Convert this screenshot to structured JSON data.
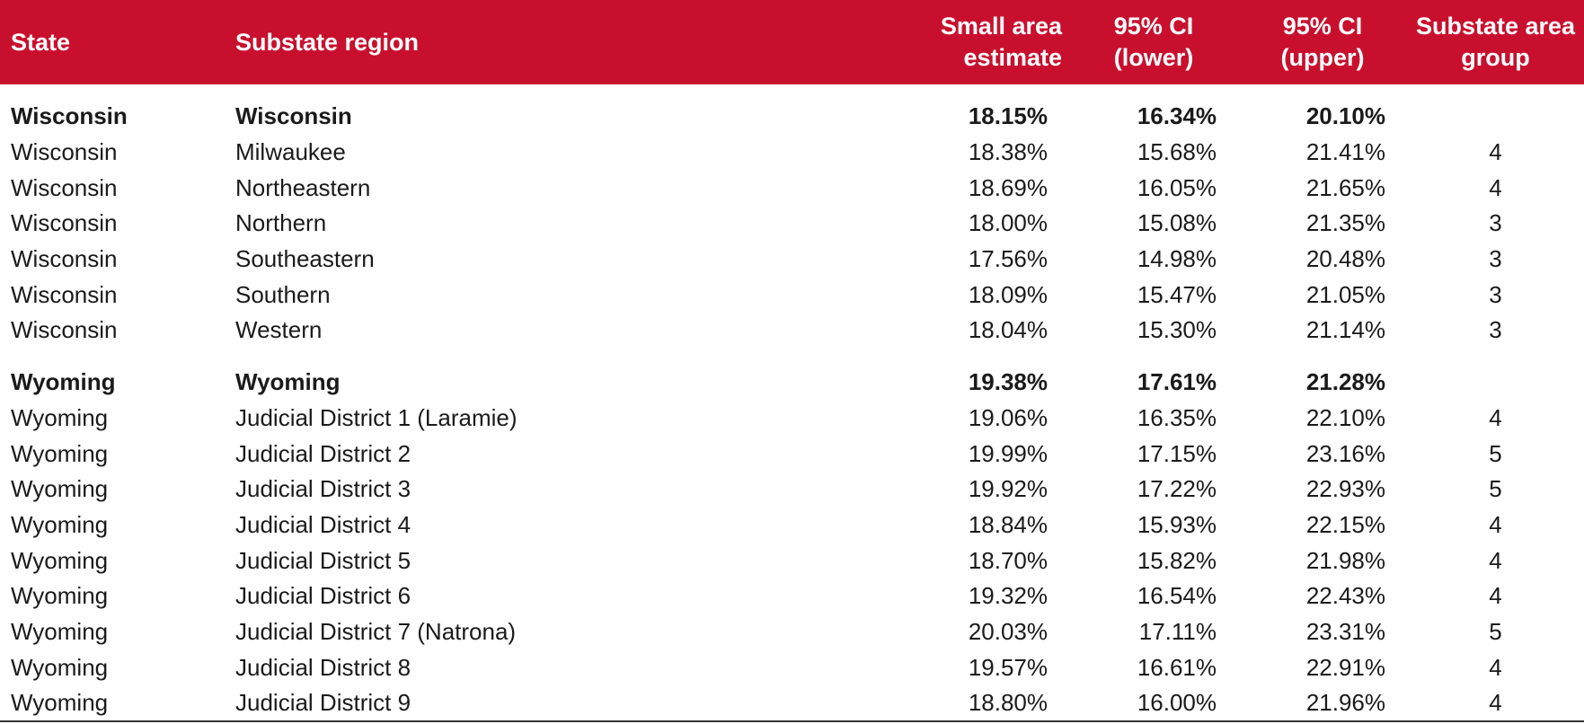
{
  "table": {
    "headers": {
      "state": "State",
      "region": "Substate region",
      "estimate": [
        "Small area",
        "estimate"
      ],
      "ci_lower": [
        "95% CI",
        "(lower)"
      ],
      "ci_upper": [
        "95% CI",
        "(upper)"
      ],
      "group": [
        "Substate area",
        "group"
      ]
    },
    "sections": [
      {
        "total": {
          "state": "Wisconsin",
          "region": "Wisconsin",
          "estimate": "18.15%",
          "ci_lower": "16.34%",
          "ci_upper": "20.10%",
          "group": ""
        },
        "rows": [
          {
            "state": "Wisconsin",
            "region": "Milwaukee",
            "estimate": "18.38%",
            "ci_lower": "15.68%",
            "ci_upper": "21.41%",
            "group": "4"
          },
          {
            "state": "Wisconsin",
            "region": "Northeastern",
            "estimate": "18.69%",
            "ci_lower": "16.05%",
            "ci_upper": "21.65%",
            "group": "4"
          },
          {
            "state": "Wisconsin",
            "region": "Northern",
            "estimate": "18.00%",
            "ci_lower": "15.08%",
            "ci_upper": "21.35%",
            "group": "3"
          },
          {
            "state": "Wisconsin",
            "region": "Southeastern",
            "estimate": "17.56%",
            "ci_lower": "14.98%",
            "ci_upper": "20.48%",
            "group": "3"
          },
          {
            "state": "Wisconsin",
            "region": "Southern",
            "estimate": "18.09%",
            "ci_lower": "15.47%",
            "ci_upper": "21.05%",
            "group": "3"
          },
          {
            "state": "Wisconsin",
            "region": "Western",
            "estimate": "18.04%",
            "ci_lower": "15.30%",
            "ci_upper": "21.14%",
            "group": "3"
          }
        ]
      },
      {
        "total": {
          "state": "Wyoming",
          "region": "Wyoming",
          "estimate": "19.38%",
          "ci_lower": "17.61%",
          "ci_upper": "21.28%",
          "group": ""
        },
        "rows": [
          {
            "state": "Wyoming",
            "region": "Judicial District 1 (Laramie)",
            "estimate": "19.06%",
            "ci_lower": "16.35%",
            "ci_upper": "22.10%",
            "group": "4"
          },
          {
            "state": "Wyoming",
            "region": "Judicial District 2",
            "estimate": "19.99%",
            "ci_lower": "17.15%",
            "ci_upper": "23.16%",
            "group": "5"
          },
          {
            "state": "Wyoming",
            "region": "Judicial District 3",
            "estimate": "19.92%",
            "ci_lower": "17.22%",
            "ci_upper": "22.93%",
            "group": "5"
          },
          {
            "state": "Wyoming",
            "region": "Judicial District 4",
            "estimate": "18.84%",
            "ci_lower": "15.93%",
            "ci_upper": "22.15%",
            "group": "4"
          },
          {
            "state": "Wyoming",
            "region": "Judicial District 5",
            "estimate": "18.70%",
            "ci_lower": "15.82%",
            "ci_upper": "21.98%",
            "group": "4"
          },
          {
            "state": "Wyoming",
            "region": "Judicial District 6",
            "estimate": "19.32%",
            "ci_lower": "16.54%",
            "ci_upper": "22.43%",
            "group": "4"
          },
          {
            "state": "Wyoming",
            "region": "Judicial District 7 (Natrona)",
            "estimate": "20.03%",
            "ci_lower": "17.11%",
            "ci_upper": "23.31%",
            "group": "5"
          },
          {
            "state": "Wyoming",
            "region": "Judicial District 8",
            "estimate": "19.57%",
            "ci_lower": "16.61%",
            "ci_upper": "22.91%",
            "group": "4"
          },
          {
            "state": "Wyoming",
            "region": "Judicial District 9",
            "estimate": "18.80%",
            "ci_lower": "16.00%",
            "ci_upper": "21.96%",
            "group": "4"
          }
        ]
      }
    ]
  },
  "colors": {
    "header_bg": "#c8102e",
    "header_text": "#ffffff",
    "body_text": "#1a1a1a"
  }
}
